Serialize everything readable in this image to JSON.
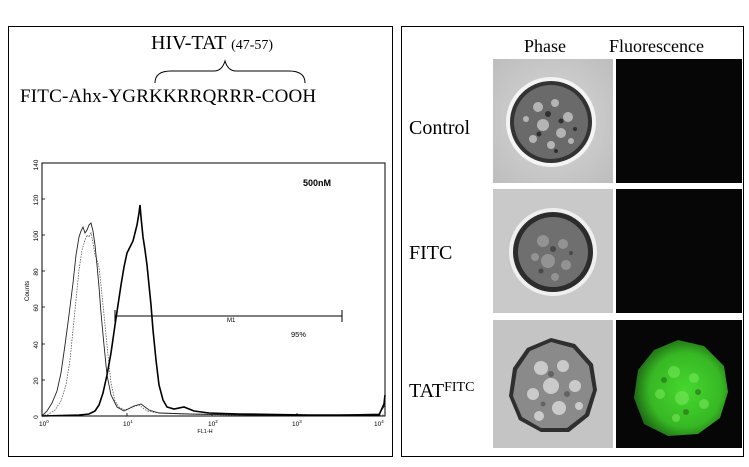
{
  "peptide": {
    "title": "HIV-TAT",
    "range": "(47-57)",
    "sequence": "FITC-Ahx-YGRKKRRQRRR-COOH"
  },
  "flow_plot": {
    "concentration": "500nM",
    "gate_label": "M1",
    "gate_percent": "95%",
    "ylabel": "Counts",
    "xlabel": "FL1-H",
    "y_ticks": [
      "0",
      "20",
      "40",
      "60",
      "80",
      "100",
      "120",
      "140"
    ],
    "x_ticks": [
      {
        "base": "10",
        "exp": "0"
      },
      {
        "base": "10",
        "exp": "1"
      },
      {
        "base": "10",
        "exp": "2"
      },
      {
        "base": "10",
        "exp": "3"
      },
      {
        "base": "10",
        "exp": "4"
      }
    ]
  },
  "microscopy": {
    "columns": [
      "Phase",
      "Fluorescence"
    ],
    "rows": [
      {
        "label": "Control",
        "fluorescence": "none"
      },
      {
        "label": "FITC",
        "fluorescence": "none"
      },
      {
        "label": "TAT",
        "label_sup": "FITC",
        "fluorescence": "green"
      }
    ],
    "colors": {
      "fluorescence_green": "#3fcf2a",
      "dark_field": "#060606"
    }
  }
}
